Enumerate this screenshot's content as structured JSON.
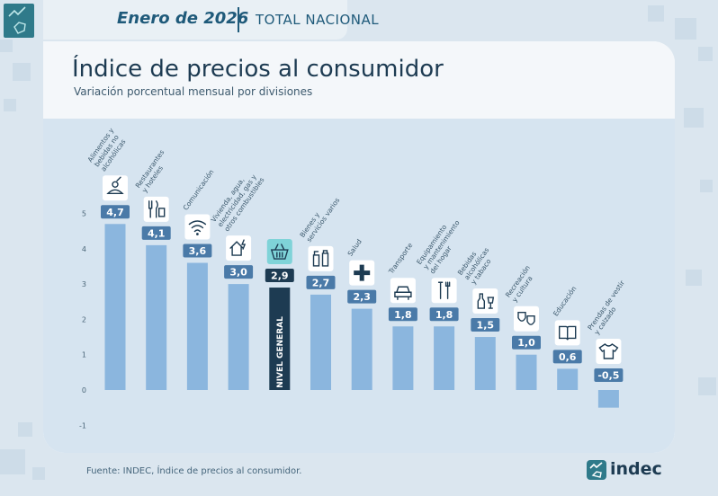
{
  "header": {
    "period": "Enero de 2026",
    "scope": "TOTAL NACIONAL"
  },
  "chart_data": {
    "type": "bar",
    "title": "Índice de precios al consumidor",
    "subtitle": "Variación porcentual mensual por divisiones",
    "ylim": [
      -1,
      5
    ],
    "yticks": [
      "-1",
      "0",
      "1",
      "2",
      "3",
      "4",
      "5"
    ],
    "categories": [
      "Alimentos y bebidas no alcohólicas",
      "Restaurantes y hoteles",
      "Comunicación",
      "Vivienda, agua, electricidad, gas y otros combustibles",
      "Nivel general",
      "Bienes y servicios varios",
      "Salud",
      "Transporte",
      "Equipamiento y mantenimiento del hogar",
      "Bebidas alcohólicas y tabaco",
      "Recreación y cultura",
      "Educación",
      "Prendas de vestir y calzado"
    ],
    "values": [
      4.7,
      4.1,
      3.6,
      3.0,
      2.9,
      2.7,
      2.3,
      1.8,
      1.8,
      1.5,
      1.0,
      0.6,
      -0.5
    ],
    "value_labels": [
      "4,7",
      "4,1",
      "3,6",
      "3,0",
      "2,9",
      "2,7",
      "2,3",
      "1,8",
      "1,8",
      "1,5",
      "1,0",
      "0,6",
      "-0,5"
    ],
    "category_label_lines": [
      [
        "Alimentos y",
        "bebidas no",
        "alcohólicas"
      ],
      [
        "Restaurantes",
        "y hoteles"
      ],
      [
        "Comunicación"
      ],
      [
        "Vivienda, agua,",
        "electricidad, gas y",
        "otros combustibles"
      ],
      [],
      [
        "Bienes y",
        "servicios varios"
      ],
      [
        "Salud"
      ],
      [
        "Transporte"
      ],
      [
        "Equipamiento",
        "y mantenimiento",
        "del hogar"
      ],
      [
        "Bebidas",
        "alcohólicas",
        "y tabaco"
      ],
      [
        "Recreación",
        "y cultura"
      ],
      [
        "Educación"
      ],
      [
        "Prendas de vestir",
        "y calzado"
      ]
    ],
    "icons": [
      "food-icon",
      "restaurant-icon",
      "wifi-icon",
      "house-icon",
      "basket-icon",
      "bottles-icon",
      "cross-icon",
      "car-icon",
      "tools-icon",
      "bottle-glass-icon",
      "masks-icon",
      "book-icon",
      "shirt-icon"
    ],
    "highlight_index": 4,
    "highlight_label": "NIVEL GENERAL",
    "colors": {
      "bar": "#8bb6de",
      "highlight": "#1d3b52",
      "label_bg": "#4a7aa8",
      "highlight_icon_bg": "#7fd3d8"
    },
    "grid": false
  },
  "footer": {
    "source": "Fuente: INDEC, Índice de precios al consumidor.",
    "brand": "indec"
  }
}
